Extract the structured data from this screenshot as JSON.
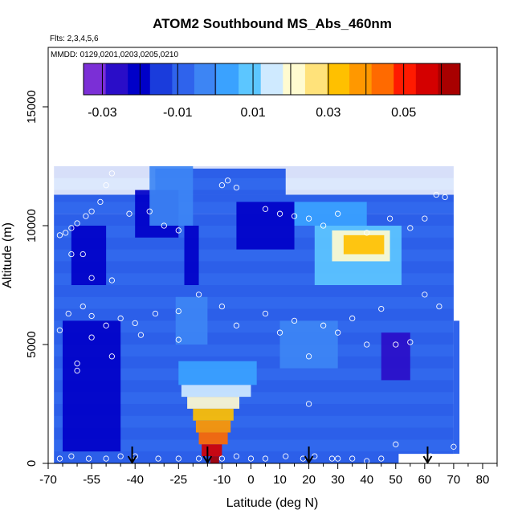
{
  "chart_data": {
    "type": "heatmap",
    "title": "ATOM2 Southbound MS_Abs_460nm",
    "flights_note": "Flts: 2,3,4,5,6",
    "dates_note": "MMDD: 0129,0201,0203,0205,0210",
    "xlabel": "Latitude (deg N)",
    "ylabel": "Altitude (m)",
    "xlim": [
      -70,
      85
    ],
    "ylim": [
      0,
      17500
    ],
    "x_ticks": [
      "-70",
      "-55",
      "-40",
      "-25",
      "-10",
      "0",
      "10",
      "20",
      "30",
      "40",
      "50",
      "60",
      "70",
      "80"
    ],
    "x_tick_values": [
      -70,
      -55,
      -40,
      -25,
      -10,
      0,
      10,
      20,
      30,
      40,
      50,
      60,
      70,
      80
    ],
    "minor_x_ticks": [
      -65,
      -60,
      -50,
      -45,
      -35,
      -30,
      -20,
      -15,
      -5,
      5,
      15,
      25,
      35,
      45,
      55,
      65,
      75,
      85
    ],
    "y_ticks": [
      "0",
      "5000",
      "10000",
      "15000"
    ],
    "y_tick_values": [
      0,
      5000,
      10000,
      15000
    ],
    "colorbar": {
      "min": -0.035,
      "max": 0.065,
      "tick_values": [
        -0.03,
        -0.01,
        0.01,
        0.03,
        0.05
      ],
      "tick_labels": [
        "-0.03",
        "-0.01",
        "0.01",
        "0.03",
        "0.05"
      ],
      "divisions": [
        -0.035,
        -0.03,
        -0.025,
        -0.02,
        -0.015,
        -0.01,
        -0.005,
        0,
        0.005,
        0.01,
        0.015,
        0.02,
        0.025,
        0.03,
        0.035,
        0.04,
        0.045,
        0.05,
        0.055,
        0.06,
        0.065
      ],
      "colors": [
        "#7b2fd6",
        "#2a0dc8",
        "#0000c8",
        "#1a3cdc",
        "#2f63ec",
        "#3d85f4",
        "#3aa2ff",
        "#5cc6ff",
        "#cfeaff",
        "#fffbd0",
        "#ffe27a",
        "#ffc000",
        "#ff9800",
        "#ff6a00",
        "#ff1a00",
        "#d40000",
        "#a80000"
      ]
    },
    "background_value": -0.007,
    "cells": [
      {
        "lat": [
          -65,
          -45
        ],
        "alt": [
          500,
          6000
        ],
        "v": -0.018
      },
      {
        "lat": [
          -62,
          -50
        ],
        "alt": [
          7500,
          10000
        ],
        "v": -0.022
      },
      {
        "lat": [
          -40,
          -25
        ],
        "alt": [
          9500,
          11500
        ],
        "v": -0.018
      },
      {
        "lat": [
          -23,
          -18
        ],
        "alt": [
          7500,
          10000
        ],
        "v": -0.022
      },
      {
        "lat": [
          -35,
          -20
        ],
        "alt": [
          10000,
          12500
        ],
        "v": -0.005
      },
      {
        "lat": [
          -5,
          15
        ],
        "alt": [
          9000,
          11000
        ],
        "v": -0.018
      },
      {
        "lat": [
          15,
          40
        ],
        "alt": [
          10000,
          11000
        ],
        "v": 0.003
      },
      {
        "lat": [
          22,
          52
        ],
        "alt": [
          7500,
          10000
        ],
        "v": 0.008
      },
      {
        "lat": [
          28,
          48
        ],
        "alt": [
          8500,
          9800
        ],
        "v": 0.022
      },
      {
        "lat": [
          32,
          46
        ],
        "alt": [
          8800,
          9600
        ],
        "v": 0.035
      },
      {
        "lat": [
          45,
          55
        ],
        "alt": [
          3500,
          5500
        ],
        "v": -0.025
      },
      {
        "lat": [
          -25,
          2
        ],
        "alt": [
          3300,
          4300
        ],
        "v": 0.004
      },
      {
        "lat": [
          -24,
          0
        ],
        "alt": [
          2800,
          3300
        ],
        "v": 0.014
      },
      {
        "lat": [
          -22,
          -4
        ],
        "alt": [
          2300,
          2800
        ],
        "v": 0.022
      },
      {
        "lat": [
          -20,
          -6
        ],
        "alt": [
          1800,
          2300
        ],
        "v": 0.032
      },
      {
        "lat": [
          -19,
          -7
        ],
        "alt": [
          1300,
          1800
        ],
        "v": 0.038
      },
      {
        "lat": [
          -18,
          -8
        ],
        "alt": [
          800,
          1300
        ],
        "v": 0.045
      },
      {
        "lat": [
          -17,
          -10
        ],
        "alt": [
          300,
          800
        ],
        "v": 0.058
      },
      {
        "lat": [
          -14,
          -11
        ],
        "alt": [
          0,
          300
        ],
        "v": 0.062
      },
      {
        "lat": [
          -26,
          -15
        ],
        "alt": [
          5000,
          7000
        ],
        "v": -0.004
      },
      {
        "lat": [
          10,
          30
        ],
        "alt": [
          4000,
          6000
        ],
        "v": 0.0
      }
    ],
    "arrow_latitudes": [
      -41,
      -15,
      20,
      61
    ]
  }
}
